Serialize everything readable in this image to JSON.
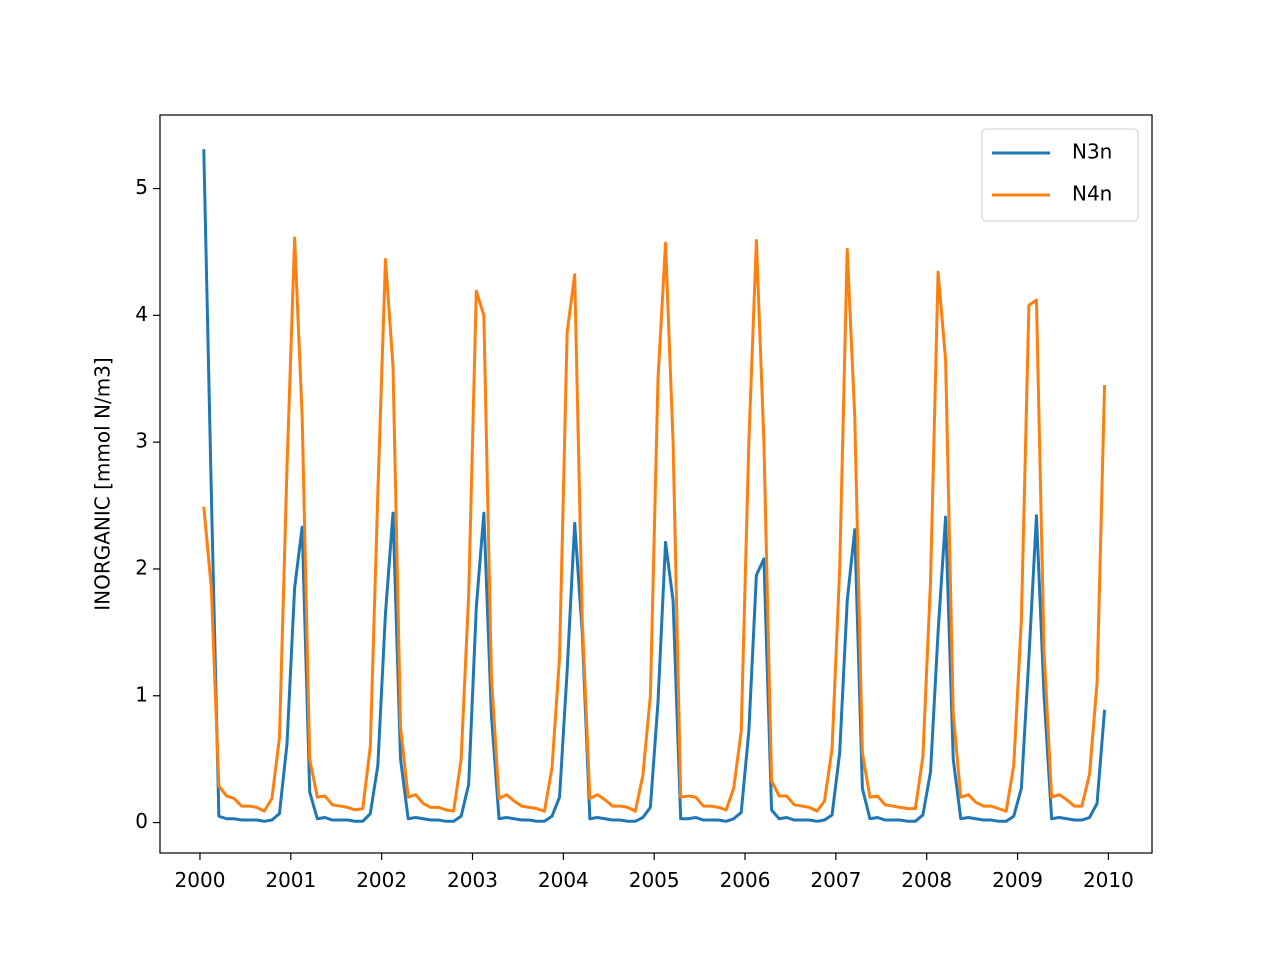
{
  "chart_data": {
    "type": "line",
    "y_label": "INORGANIC [mmol N/m3]",
    "x": [
      2000.042,
      2000.125,
      2000.208,
      2000.292,
      2000.375,
      2000.458,
      2000.542,
      2000.625,
      2000.708,
      2000.792,
      2000.875,
      2000.958,
      2001.042,
      2001.125,
      2001.208,
      2001.292,
      2001.375,
      2001.458,
      2001.542,
      2001.625,
      2001.708,
      2001.792,
      2001.875,
      2001.958,
      2002.042,
      2002.125,
      2002.208,
      2002.292,
      2002.375,
      2002.458,
      2002.542,
      2002.625,
      2002.708,
      2002.792,
      2002.875,
      2002.958,
      2003.042,
      2003.125,
      2003.208,
      2003.292,
      2003.375,
      2003.458,
      2003.542,
      2003.625,
      2003.708,
      2003.792,
      2003.875,
      2003.958,
      2004.042,
      2004.125,
      2004.208,
      2004.292,
      2004.375,
      2004.458,
      2004.542,
      2004.625,
      2004.708,
      2004.792,
      2004.875,
      2004.958,
      2005.042,
      2005.125,
      2005.208,
      2005.292,
      2005.375,
      2005.458,
      2005.542,
      2005.625,
      2005.708,
      2005.792,
      2005.875,
      2005.958,
      2006.042,
      2006.125,
      2006.208,
      2006.292,
      2006.375,
      2006.458,
      2006.542,
      2006.625,
      2006.708,
      2006.792,
      2006.875,
      2006.958,
      2007.042,
      2007.125,
      2007.208,
      2007.292,
      2007.375,
      2007.458,
      2007.542,
      2007.625,
      2007.708,
      2007.792,
      2007.875,
      2007.958,
      2008.042,
      2008.125,
      2008.208,
      2008.292,
      2008.375,
      2008.458,
      2008.542,
      2008.625,
      2008.708,
      2008.792,
      2008.875,
      2008.958,
      2009.042,
      2009.125,
      2009.208,
      2009.292,
      2009.375,
      2009.458,
      2009.542,
      2009.625,
      2009.708,
      2009.792,
      2009.875,
      2009.958
    ],
    "series": [
      {
        "name": "N3n",
        "color": "#1f77b4",
        "values": [
          5.31,
          2.6,
          0.05,
          0.03,
          0.03,
          0.02,
          0.02,
          0.02,
          0.01,
          0.02,
          0.07,
          0.62,
          1.85,
          2.33,
          0.24,
          0.03,
          0.04,
          0.02,
          0.02,
          0.02,
          0.01,
          0.01,
          0.07,
          0.45,
          1.65,
          2.44,
          0.5,
          0.03,
          0.04,
          0.03,
          0.02,
          0.02,
          0.01,
          0.01,
          0.05,
          0.3,
          1.7,
          2.44,
          0.85,
          0.03,
          0.04,
          0.03,
          0.02,
          0.02,
          0.01,
          0.01,
          0.05,
          0.2,
          1.2,
          2.36,
          1.5,
          0.03,
          0.04,
          0.03,
          0.02,
          0.02,
          0.01,
          0.01,
          0.04,
          0.12,
          0.95,
          2.21,
          1.75,
          0.03,
          0.03,
          0.04,
          0.02,
          0.02,
          0.02,
          0.01,
          0.03,
          0.08,
          0.72,
          1.95,
          2.08,
          0.1,
          0.03,
          0.04,
          0.02,
          0.02,
          0.02,
          0.01,
          0.02,
          0.06,
          0.55,
          1.75,
          2.31,
          0.27,
          0.03,
          0.04,
          0.02,
          0.02,
          0.02,
          0.01,
          0.01,
          0.06,
          0.4,
          1.5,
          2.41,
          0.5,
          0.03,
          0.04,
          0.03,
          0.02,
          0.02,
          0.01,
          0.01,
          0.05,
          0.27,
          1.3,
          2.42,
          1.0,
          0.03,
          0.04,
          0.03,
          0.02,
          0.02,
          0.04,
          0.15,
          0.89
        ]
      },
      {
        "name": "N4n",
        "color": "#ff7f0e",
        "values": [
          2.49,
          1.85,
          0.29,
          0.21,
          0.19,
          0.13,
          0.13,
          0.12,
          0.09,
          0.19,
          0.67,
          2.8,
          4.61,
          3.2,
          0.5,
          0.2,
          0.21,
          0.14,
          0.13,
          0.12,
          0.1,
          0.11,
          0.6,
          2.6,
          4.44,
          3.6,
          0.75,
          0.2,
          0.22,
          0.15,
          0.12,
          0.12,
          0.1,
          0.09,
          0.5,
          1.8,
          4.19,
          4.0,
          1.15,
          0.19,
          0.22,
          0.17,
          0.13,
          0.12,
          0.11,
          0.09,
          0.43,
          1.3,
          3.87,
          4.32,
          1.6,
          0.19,
          0.22,
          0.18,
          0.13,
          0.13,
          0.12,
          0.09,
          0.37,
          1.0,
          3.5,
          4.57,
          3.0,
          0.2,
          0.21,
          0.2,
          0.13,
          0.13,
          0.12,
          0.1,
          0.27,
          0.72,
          3.0,
          4.59,
          3.0,
          0.33,
          0.21,
          0.21,
          0.14,
          0.13,
          0.12,
          0.09,
          0.17,
          0.58,
          2.0,
          4.52,
          3.2,
          0.55,
          0.2,
          0.21,
          0.14,
          0.13,
          0.12,
          0.11,
          0.11,
          0.52,
          1.9,
          4.34,
          3.65,
          0.86,
          0.2,
          0.22,
          0.16,
          0.13,
          0.13,
          0.11,
          0.09,
          0.45,
          1.6,
          4.08,
          4.12,
          1.35,
          0.2,
          0.22,
          0.18,
          0.13,
          0.13,
          0.38,
          1.1,
          3.45
        ]
      }
    ],
    "xlim": [
      1999.56,
      2010.48
    ],
    "xticks": [
      2000,
      2001,
      2002,
      2003,
      2004,
      2005,
      2006,
      2007,
      2008,
      2009,
      2010
    ],
    "ylim": [
      -0.24,
      5.58
    ],
    "yticks": [
      0,
      1,
      2,
      3,
      4,
      5
    ],
    "grid": false,
    "legend": "upper right"
  }
}
